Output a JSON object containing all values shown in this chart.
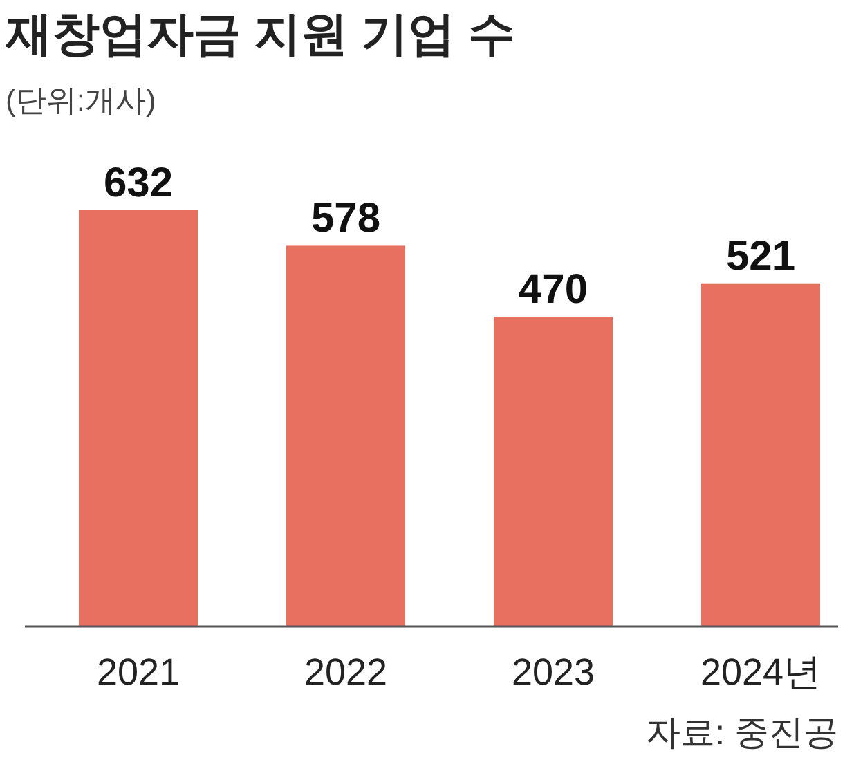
{
  "chart_data": {
    "type": "bar",
    "title": "재창업자금 지원 기업 수",
    "subtitle": "(단위:개사)",
    "categories": [
      "2021",
      "2022",
      "2023",
      "2024년"
    ],
    "values": [
      632,
      578,
      470,
      521
    ],
    "color": "#e87060",
    "data_labels": true,
    "annotations": [
      "자료: 중진공"
    ]
  }
}
